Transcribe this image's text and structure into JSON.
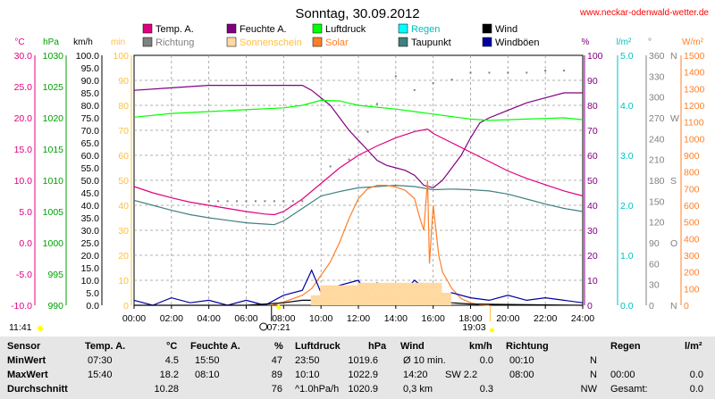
{
  "header": {
    "title": "Sonntag, 30.09.2012",
    "site": "www.neckar-odenwald-wetter.de"
  },
  "legend": [
    {
      "name": "Temp. A.",
      "color": "#e0007f",
      "text_color": "#000000"
    },
    {
      "name": "Richtung",
      "color": "#808080",
      "text_color": "#808080"
    },
    {
      "name": "Feuchte A.",
      "color": "#800080",
      "text_color": "#000000"
    },
    {
      "name": "Sonnenschein",
      "color": "#ffd9a0",
      "text_color": "#ffc040"
    },
    {
      "name": "Luftdruck",
      "color": "#00ff00",
      "text_color": "#000000"
    },
    {
      "name": "Solar",
      "color": "#ff7f27",
      "text_color": "#ff7f27"
    },
    {
      "name": "Regen",
      "color": "#00ffff",
      "text_color": "#00c0c0"
    },
    {
      "name": "Taupunkt",
      "color": "#408080",
      "text_color": "#000000"
    },
    {
      "name": "Wind",
      "color": "#000000",
      "text_color": "#000000"
    },
    {
      "name": "Windböen",
      "color": "#0000a0",
      "text_color": "#000000"
    }
  ],
  "axes": {
    "temp": {
      "unit": "°C",
      "color": "#e0007f",
      "min": -10,
      "max": 30,
      "ticks": [
        "30.0",
        "25.0",
        "20.0",
        "15.0",
        "10.0",
        "5.0",
        "0.0",
        "-5.0",
        "-10.0"
      ]
    },
    "pressure": {
      "unit": "hPa",
      "color": "#00a000",
      "min": 990,
      "max": 1030,
      "ticks": [
        "1030",
        "1025",
        "1020",
        "1015",
        "1010",
        "1005",
        "1000",
        "995",
        "990"
      ]
    },
    "wind": {
      "unit": "km/h",
      "color": "#000000",
      "min": 0,
      "max": 100,
      "ticks": [
        "100.0",
        "95.0",
        "90.0",
        "85.0",
        "80.0",
        "75.0",
        "70.0",
        "65.0",
        "60.0",
        "55.0",
        "50.0",
        "45.0",
        "40.0",
        "35.0",
        "30.0",
        "25.0",
        "20.0",
        "15.0",
        "10.0",
        "5.0",
        "0.0"
      ]
    },
    "sunshine": {
      "unit": "min",
      "color": "#ffc040",
      "min": 0,
      "max": 100,
      "ticks": [
        "100",
        "90",
        "80",
        "70",
        "60",
        "50",
        "40",
        "30",
        "20",
        "10",
        "0"
      ]
    },
    "humidity": {
      "unit": "%",
      "color": "#800080",
      "min": 0,
      "max": 100,
      "ticks": [
        "100",
        "90",
        "80",
        "70",
        "60",
        "50",
        "40",
        "30",
        "20",
        "10",
        "0"
      ]
    },
    "rain": {
      "unit": "l/m²",
      "color": "#00c0c0",
      "min": 0,
      "max": 5,
      "ticks": [
        "5.0",
        "4.0",
        "3.0",
        "2.0",
        "1.0",
        "0.0"
      ]
    },
    "direction": {
      "unit": "°",
      "color": "#808080",
      "min": 0,
      "max": 360,
      "ticks": [
        "360",
        "330",
        "300",
        "270",
        "240",
        "210",
        "180",
        "150",
        "120",
        "90",
        "60",
        "30",
        "0"
      ],
      "compass": [
        "N",
        "W",
        "S",
        "O",
        "N"
      ]
    },
    "solar": {
      "unit": "W/m²",
      "color": "#ff7f27",
      "min": 0,
      "max": 1500,
      "ticks": [
        "1500",
        "1400",
        "1300",
        "1200",
        "1100",
        "1000",
        "900",
        "800",
        "700",
        "600",
        "500",
        "400",
        "300",
        "200",
        "100",
        "0"
      ]
    },
    "x_ticks": [
      "00:00",
      "02:00",
      "04:00",
      "06:00",
      "08:00",
      "10:00",
      "12:00",
      "14:00",
      "16:00",
      "18:00",
      "20:00",
      "22:00",
      "24:00"
    ]
  },
  "sun": {
    "sunrise": "07:21",
    "sunset": "19:03",
    "moonset": "11:41"
  },
  "chart_data": {
    "type": "line",
    "x_unit": "hours",
    "series": [
      {
        "name": "Feuchte A.",
        "axis": "humidity",
        "color": "#800080",
        "points": [
          [
            0,
            86
          ],
          [
            2,
            87
          ],
          [
            4,
            88
          ],
          [
            6,
            88
          ],
          [
            8,
            88
          ],
          [
            9,
            88
          ],
          [
            9.5,
            86
          ],
          [
            10,
            83
          ],
          [
            10.5,
            80
          ],
          [
            11,
            75
          ],
          [
            11.5,
            70
          ],
          [
            12,
            66
          ],
          [
            12.5,
            62
          ],
          [
            13,
            58
          ],
          [
            13.5,
            56
          ],
          [
            14,
            55
          ],
          [
            14.5,
            54
          ],
          [
            15,
            52
          ],
          [
            15.5,
            48
          ],
          [
            16,
            47
          ],
          [
            16.5,
            50
          ],
          [
            17,
            55
          ],
          [
            17.5,
            60
          ],
          [
            18,
            67
          ],
          [
            18.5,
            73
          ],
          [
            19,
            75
          ],
          [
            20,
            78
          ],
          [
            21,
            81
          ],
          [
            22,
            83
          ],
          [
            23,
            85
          ],
          [
            24,
            85
          ]
        ]
      },
      {
        "name": "Luftdruck",
        "axis": "pressure",
        "color": "#00ff00",
        "points": [
          [
            0,
            1020.1
          ],
          [
            2,
            1020.7
          ],
          [
            4,
            1021
          ],
          [
            6,
            1021.3
          ],
          [
            8,
            1021.6
          ],
          [
            9,
            1022
          ],
          [
            10,
            1022.8
          ],
          [
            11,
            1022.7
          ],
          [
            12,
            1022
          ],
          [
            13,
            1021.7
          ],
          [
            14,
            1021.4
          ],
          [
            15,
            1021
          ],
          [
            16,
            1020.6
          ],
          [
            17,
            1020.2
          ],
          [
            18,
            1019.8
          ],
          [
            19,
            1019.6
          ],
          [
            20,
            1019.7
          ],
          [
            21,
            1019.8
          ],
          [
            22,
            1019.9
          ],
          [
            23,
            1020
          ],
          [
            24,
            1019.7
          ]
        ]
      },
      {
        "name": "Temp. A.",
        "axis": "temp",
        "color": "#e0007f",
        "points": [
          [
            0,
            9.0
          ],
          [
            1,
            8.0
          ],
          [
            2,
            7.2
          ],
          [
            3,
            6.5
          ],
          [
            4,
            6.0
          ],
          [
            5,
            5.5
          ],
          [
            6,
            5.0
          ],
          [
            7,
            4.6
          ],
          [
            7.5,
            4.5
          ],
          [
            8,
            5.0
          ],
          [
            9,
            7.0
          ],
          [
            10,
            9.5
          ],
          [
            11,
            12.0
          ],
          [
            12,
            14.0
          ],
          [
            13,
            15.5
          ],
          [
            14,
            16.8
          ],
          [
            15,
            17.8
          ],
          [
            15.7,
            18.2
          ],
          [
            16,
            17.5
          ],
          [
            17,
            16.0
          ],
          [
            18,
            14.5
          ],
          [
            19,
            13.0
          ],
          [
            20,
            11.5
          ],
          [
            21,
            10.3
          ],
          [
            22,
            9.3
          ],
          [
            23,
            8.3
          ],
          [
            24,
            7.5
          ]
        ]
      },
      {
        "name": "Taupunkt",
        "axis": "temp",
        "color": "#408080",
        "points": [
          [
            0,
            6.8
          ],
          [
            1,
            6.0
          ],
          [
            2,
            5.2
          ],
          [
            3,
            4.5
          ],
          [
            4,
            4.0
          ],
          [
            5,
            3.6
          ],
          [
            6,
            3.2
          ],
          [
            7,
            3.0
          ],
          [
            7.5,
            2.9
          ],
          [
            8,
            3.5
          ],
          [
            9,
            5.5
          ],
          [
            10,
            7.5
          ],
          [
            11,
            8.2
          ],
          [
            12,
            8.8
          ],
          [
            13,
            9.0
          ],
          [
            14,
            9.2
          ],
          [
            15,
            9.0
          ],
          [
            16,
            8.5
          ],
          [
            17,
            8.6
          ],
          [
            18,
            8.5
          ],
          [
            19,
            8.3
          ],
          [
            20,
            7.8
          ],
          [
            21,
            7.0
          ],
          [
            22,
            6.2
          ],
          [
            23,
            5.5
          ],
          [
            24,
            5.0
          ]
        ]
      },
      {
        "name": "Solar",
        "axis": "solar",
        "color": "#ff7f27",
        "points": [
          [
            7.3,
            0
          ],
          [
            8,
            20
          ],
          [
            9,
            60
          ],
          [
            9.5,
            100
          ],
          [
            10,
            180
          ],
          [
            10.5,
            260
          ],
          [
            11,
            380
          ],
          [
            11.5,
            520
          ],
          [
            12,
            640
          ],
          [
            12.5,
            700
          ],
          [
            13,
            720
          ],
          [
            13.5,
            720
          ],
          [
            14,
            710
          ],
          [
            14.5,
            690
          ],
          [
            15,
            640
          ],
          [
            15.3,
            520
          ],
          [
            15.5,
            450
          ],
          [
            15.7,
            750
          ],
          [
            15.8,
            250
          ],
          [
            16,
            600
          ],
          [
            16.3,
            300
          ],
          [
            16.5,
            200
          ],
          [
            17,
            100
          ],
          [
            17.5,
            40
          ],
          [
            18,
            15
          ],
          [
            18.5,
            3
          ],
          [
            19,
            0
          ]
        ]
      },
      {
        "name": "Windböen",
        "axis": "wind",
        "color": "#0000a0",
        "points": [
          [
            0,
            2
          ],
          [
            1,
            0
          ],
          [
            2,
            3
          ],
          [
            3,
            1
          ],
          [
            4,
            2
          ],
          [
            5,
            0
          ],
          [
            6,
            2
          ],
          [
            7,
            0
          ],
          [
            8,
            4
          ],
          [
            9,
            6
          ],
          [
            9.5,
            14
          ],
          [
            10,
            5
          ],
          [
            11,
            8
          ],
          [
            12,
            10
          ],
          [
            12.5,
            4
          ],
          [
            13,
            9
          ],
          [
            13.5,
            5
          ],
          [
            14,
            8
          ],
          [
            14.5,
            6
          ],
          [
            15,
            10
          ],
          [
            15.5,
            7
          ],
          [
            16,
            8
          ],
          [
            16.5,
            4
          ],
          [
            17,
            5
          ],
          [
            18,
            3
          ],
          [
            19,
            2
          ],
          [
            20,
            4
          ],
          [
            21,
            2
          ],
          [
            22,
            3
          ],
          [
            23,
            2
          ],
          [
            24,
            1
          ]
        ]
      },
      {
        "name": "Wind",
        "axis": "wind",
        "color": "#000000",
        "points": [
          [
            0,
            0
          ],
          [
            6,
            0
          ],
          [
            8,
            1
          ],
          [
            9,
            2
          ],
          [
            10,
            2
          ],
          [
            11,
            3
          ],
          [
            12,
            3
          ],
          [
            13,
            3
          ],
          [
            14,
            3
          ],
          [
            15,
            3
          ],
          [
            16,
            2
          ],
          [
            17,
            1
          ],
          [
            18,
            0.5
          ],
          [
            24,
            0
          ]
        ]
      },
      {
        "name": "Richtung",
        "axis": "direction",
        "color": "#808080",
        "points": [
          [
            4,
            150
          ],
          [
            4.5,
            150
          ],
          [
            5,
            150
          ],
          [
            5.5,
            150
          ],
          [
            6,
            150
          ],
          [
            6.5,
            150
          ],
          [
            7,
            150
          ],
          [
            7.5,
            150
          ],
          [
            8,
            150
          ],
          [
            8.5,
            150
          ],
          [
            9,
            150
          ],
          [
            10.5,
            200
          ],
          [
            11.5,
            210
          ],
          [
            12.5,
            250
          ],
          [
            13,
            290
          ],
          [
            14,
            330
          ],
          [
            15,
            310
          ],
          [
            16,
            320
          ],
          [
            17,
            325
          ],
          [
            18,
            335
          ],
          [
            19,
            335
          ],
          [
            20,
            335
          ],
          [
            21,
            335
          ],
          [
            22,
            338
          ],
          [
            23,
            338
          ],
          [
            24,
            338
          ]
        ]
      },
      {
        "name": "Sonnenschein",
        "axis": "sunshine",
        "color": "#ffd9a0",
        "points": [
          [
            9.5,
            4
          ],
          [
            10,
            8
          ],
          [
            10.5,
            8
          ],
          [
            11,
            8
          ],
          [
            11.5,
            8
          ],
          [
            12,
            9
          ],
          [
            12.5,
            9
          ],
          [
            13,
            9
          ],
          [
            13.5,
            9
          ],
          [
            14,
            9
          ],
          [
            14.5,
            9
          ],
          [
            15,
            9
          ],
          [
            15.5,
            9
          ],
          [
            16,
            9
          ],
          [
            16.5,
            5
          ]
        ]
      }
    ]
  },
  "stats": {
    "headers": {
      "sensor": "Sensor",
      "temp": "Temp. A.",
      "temp_unit": "°C",
      "hum": "Feuchte A.",
      "hum_unit": "%",
      "press": "Luftdruck",
      "press_unit": "hPa",
      "wind": "Wind",
      "wind_unit": "km/h",
      "dir": "Richtung",
      "rain": "Regen",
      "rain_unit": "l/m²"
    },
    "rows": [
      {
        "label": "MinWert",
        "temp_time": "07:30",
        "temp_val": "4.5",
        "hum_time": "15:50",
        "hum_val": "47",
        "press_time": "23:50",
        "press_val": "1019.6",
        "wind_time": "Ø 10 min.",
        "wind_val": "0.0",
        "dir_time": "00:10",
        "dir_val": "N",
        "rain_time": "",
        "rain_val": ""
      },
      {
        "label": "MaxWert",
        "temp_time": "15:40",
        "temp_val": "18.2",
        "hum_time": "08:10",
        "hum_val": "89",
        "press_time": "10:10",
        "press_val": "1022.9",
        "wind_time": "14:20",
        "wind_mid": "SW 2.2",
        "wind_val": "",
        "dir_time": "08:00",
        "dir_val": "N",
        "rain_time": "00:00",
        "rain_val": "0.0"
      },
      {
        "label": "Durchschnitt",
        "temp_time": "",
        "temp_val": "10.28",
        "hum_time": "",
        "hum_val": "76",
        "press_time": "^1.0hPa/h",
        "press_val": "1020.9",
        "wind_time": "0,3 km",
        "wind_val": "0.3",
        "dir_time": "",
        "dir_val": "NW",
        "rain_time": "Gesamt:",
        "rain_val": "0.0"
      }
    ]
  }
}
